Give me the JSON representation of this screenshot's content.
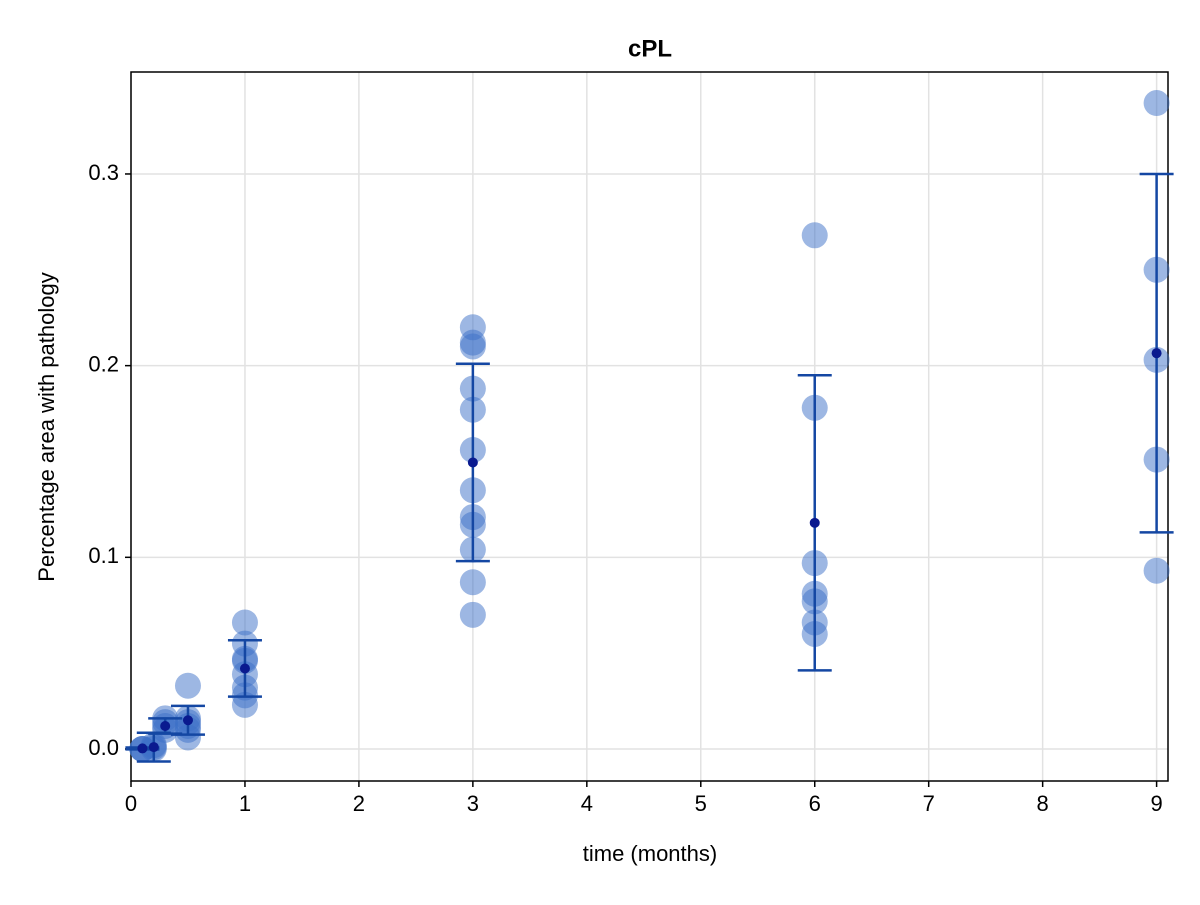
{
  "chart_data": {
    "type": "scatter",
    "title": "cPL",
    "xlabel": "time (months)",
    "ylabel": "Percentage area with pathology",
    "x": [
      0.1,
      0.1,
      0.1,
      0.2,
      0.2,
      0.2,
      0.3,
      0.3,
      0.3,
      0.3,
      0.5,
      0.5,
      0.5,
      0.5,
      0.5,
      0.5,
      1,
      1,
      1,
      1,
      1,
      1,
      1,
      1,
      3,
      3,
      3,
      3,
      3,
      3,
      3,
      3,
      3,
      3,
      3,
      3,
      6,
      6,
      6,
      6,
      6,
      6,
      6,
      9,
      9,
      9,
      9,
      9
    ],
    "y": [
      0.0,
      0.0,
      0.0,
      0.0,
      0.001,
      0.002,
      0.016,
      0.014,
      0.012,
      0.01,
      0.033,
      0.016,
      0.014,
      0.012,
      0.01,
      0.006,
      0.066,
      0.055,
      0.047,
      0.046,
      0.039,
      0.032,
      0.028,
      0.023,
      0.22,
      0.212,
      0.21,
      0.188,
      0.177,
      0.156,
      0.135,
      0.121,
      0.117,
      0.104,
      0.087,
      0.07,
      0.268,
      0.178,
      0.097,
      0.081,
      0.077,
      0.066,
      0.06,
      0.337,
      0.25,
      0.203,
      0.151,
      0.093
    ],
    "point_color": "#3c6fc8",
    "summary": {
      "x": [
        0.1,
        0.2,
        0.3,
        0.5,
        1,
        3,
        6,
        9
      ],
      "mean": [
        0.0003,
        0.001,
        0.012,
        0.015,
        0.042,
        0.1495,
        0.118,
        0.2065
      ],
      "error": [
        0.0005,
        0.0075,
        0.004,
        0.0075,
        0.0147,
        0.0515,
        0.077,
        0.0935
      ],
      "color": "#1447a3",
      "mean_color": "#0a1a8f"
    },
    "xlim": [
      0,
      9.1
    ],
    "ylim": [
      -0.0167,
      0.3532
    ],
    "xticks": [
      0,
      1,
      2,
      3,
      4,
      5,
      6,
      7,
      8,
      9
    ],
    "yticks": [
      {
        "value": 0,
        "label": "0.0"
      },
      0.1,
      0.2,
      0.3
    ],
    "grid": true
  }
}
